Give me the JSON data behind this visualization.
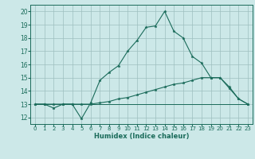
{
  "background_color": "#cce8e8",
  "grid_color": "#9dbfbf",
  "line_color": "#1a6b5a",
  "xlabel": "Humidex (Indice chaleur)",
  "xlim": [
    -0.5,
    23.5
  ],
  "ylim": [
    11.5,
    20.5
  ],
  "yticks": [
    12,
    13,
    14,
    15,
    16,
    17,
    18,
    19,
    20
  ],
  "xticks": [
    0,
    1,
    2,
    3,
    4,
    5,
    6,
    7,
    8,
    9,
    10,
    11,
    12,
    13,
    14,
    15,
    16,
    17,
    18,
    19,
    20,
    21,
    22,
    23
  ],
  "line1_x": [
    0,
    1,
    2,
    3,
    4,
    5,
    6,
    7,
    8,
    9,
    10,
    11,
    12,
    13,
    14,
    15,
    16,
    17,
    18,
    19,
    20,
    21,
    22,
    23
  ],
  "line1_y": [
    13.0,
    13.0,
    12.7,
    13.0,
    13.0,
    11.9,
    13.1,
    14.8,
    15.4,
    15.9,
    17.0,
    17.8,
    18.8,
    18.9,
    20.0,
    18.5,
    18.0,
    16.6,
    16.1,
    15.0,
    15.0,
    14.3,
    13.4,
    13.0
  ],
  "line2_x": [
    0,
    1,
    2,
    3,
    4,
    5,
    6,
    7,
    8,
    9,
    10,
    11,
    12,
    13,
    14,
    15,
    16,
    17,
    18,
    19,
    20,
    21,
    22,
    23
  ],
  "line2_y": [
    13.0,
    13.0,
    13.0,
    13.0,
    13.0,
    13.0,
    13.0,
    13.1,
    13.2,
    13.4,
    13.5,
    13.7,
    13.9,
    14.1,
    14.3,
    14.5,
    14.6,
    14.8,
    15.0,
    15.0,
    15.0,
    14.2,
    13.4,
    13.0
  ],
  "line3_x": [
    0,
    23
  ],
  "line3_y": [
    13.0,
    13.0
  ],
  "tick_fontsize": 5,
  "xlabel_fontsize": 6,
  "marker_size": 2.5
}
